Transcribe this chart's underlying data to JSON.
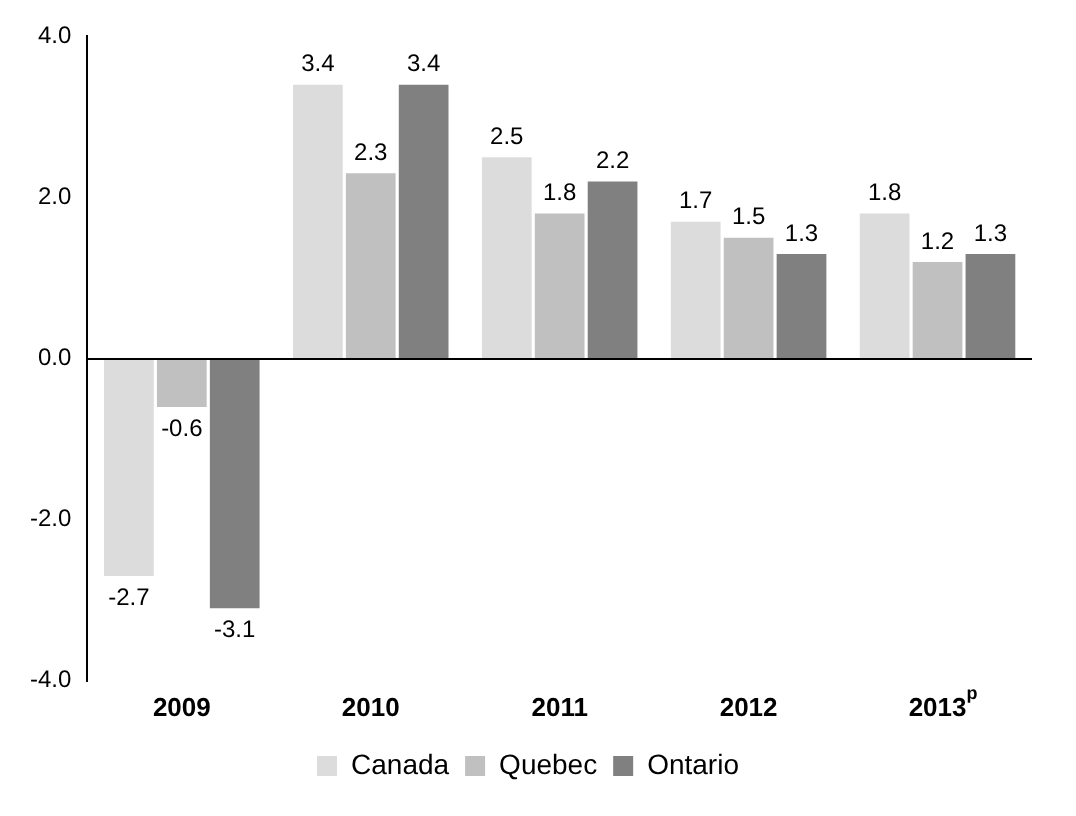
{
  "chart_data": {
    "type": "bar",
    "categories": [
      "2009",
      "2010",
      "2011",
      "2012",
      "2013$^{p}$"
    ],
    "series": [
      {
        "name": "Canada",
        "color": "#dcdcdc",
        "values": [
          -2.7,
          3.4,
          2.5,
          1.7,
          1.8
        ]
      },
      {
        "name": "Quebec",
        "color": "#c0c0c0",
        "values": [
          -0.6,
          2.3,
          1.8,
          1.5,
          1.2
        ]
      },
      {
        "name": "Ontario",
        "color": "#808080",
        "values": [
          -3.1,
          3.4,
          2.2,
          1.3,
          1.3
        ]
      }
    ],
    "ylim": [
      -4,
      4
    ],
    "yticks": [
      {
        "value": -4,
        "label": "-4.0"
      },
      {
        "value": -2,
        "label": "-2.0"
      },
      {
        "value": 0,
        "label": "0.0"
      },
      {
        "value": 2,
        "label": "2.0"
      },
      {
        "value": 4,
        "label": "4.0"
      }
    ],
    "ref_lines": [
      {
        "axis": "y",
        "value": 0,
        "color": "#000000"
      }
    ],
    "data_labels": true,
    "legend": "bottom",
    "grid": false
  }
}
